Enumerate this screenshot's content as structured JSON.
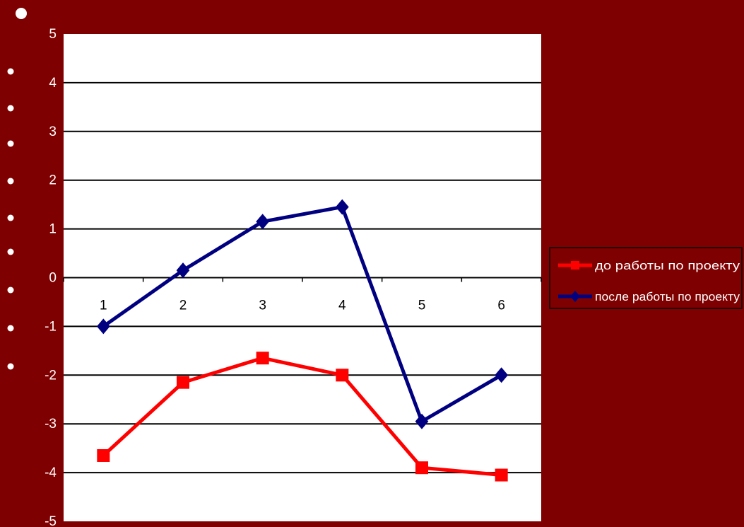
{
  "colors": {
    "background": "#7f0000",
    "plot_area": "#ffffff",
    "before_series": "#ff0000",
    "after_series": "#000080"
  },
  "chart_data": {
    "type": "line",
    "title": "",
    "xlabel": "",
    "ylabel": "",
    "categories": [
      "1",
      "2",
      "3",
      "4",
      "5",
      "6"
    ],
    "ylim": [
      -5,
      5
    ],
    "yticks": [
      "5",
      "4",
      "3",
      "2",
      "1",
      "0",
      "-1",
      "-2",
      "-3",
      "-4",
      "-5"
    ],
    "grid": true,
    "legend_position": "right",
    "series": [
      {
        "name": "до работы по проекту",
        "color": "#ff0000",
        "marker": "square",
        "values": [
          -3.65,
          -2.15,
          -1.65,
          -2.0,
          -3.9,
          -4.05
        ]
      },
      {
        "name": "после работы по проекту",
        "color": "#000080",
        "marker": "diamond",
        "values": [
          -1.0,
          0.15,
          1.15,
          1.45,
          -2.95,
          -2.0
        ]
      }
    ]
  }
}
